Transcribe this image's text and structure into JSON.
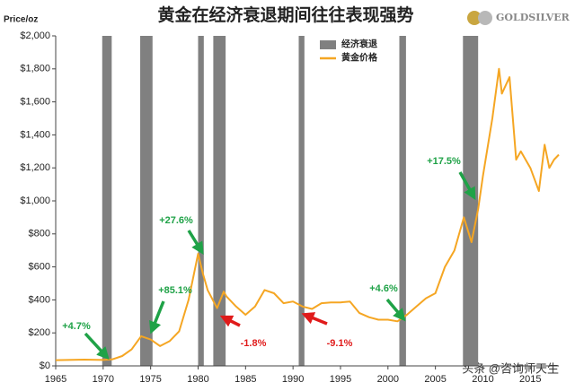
{
  "chart_data": {
    "type": "line",
    "title": "黄金在经济衰退期间往往表现强势",
    "y_label": "Price/oz",
    "logo": "GOLDSILVER",
    "watermark": "头条 @咨询师天生",
    "xlim": [
      1965,
      2018
    ],
    "xticks": [
      1965,
      1970,
      1975,
      1980,
      1985,
      1990,
      1995,
      2000,
      2005,
      2010,
      2015
    ],
    "ylim": [
      0,
      2000
    ],
    "yticks": [
      {
        "value": 0,
        "label": "$0"
      },
      {
        "value": 200,
        "label": "$200"
      },
      {
        "value": 400,
        "label": "$400"
      },
      {
        "value": 600,
        "label": "$600"
      },
      {
        "value": 800,
        "label": "$800"
      },
      {
        "value": 1000,
        "label": "$1,000"
      },
      {
        "value": 1200,
        "label": "$1,200"
      },
      {
        "value": 1400,
        "label": "$1,400"
      },
      {
        "value": 1600,
        "label": "$1,600"
      },
      {
        "value": 1800,
        "label": "$1,800"
      },
      {
        "value": 2000,
        "label": "$2,000"
      }
    ],
    "series": [
      {
        "name": "经济衰退",
        "color": "#808080",
        "ranges": [
          [
            1969.9,
            1970.9
          ],
          [
            1973.9,
            1975.2
          ],
          [
            1980.0,
            1980.6
          ],
          [
            1981.6,
            1982.9
          ],
          [
            1990.6,
            1991.2
          ],
          [
            2001.2,
            2001.9
          ],
          [
            2007.9,
            2009.5
          ]
        ]
      },
      {
        "name": "黄金价格",
        "color": "#f5a623",
        "x": [
          1965,
          1968,
          1970,
          1971,
          1972,
          1973,
          1974,
          1975,
          1976,
          1977,
          1978,
          1979,
          1980,
          1980.5,
          1981,
          1982,
          1982.7,
          1983,
          1984,
          1985,
          1986,
          1987,
          1988,
          1989,
          1990,
          1991,
          1992,
          1993,
          1994,
          1995,
          1996,
          1997,
          1998,
          1999,
          2000,
          2001,
          2002,
          2003,
          2004,
          2005,
          2006,
          2007,
          2008,
          2008.8,
          2009.5,
          2010,
          2011,
          2011.7,
          2012,
          2012.8,
          2013.3,
          2013.5,
          2014,
          2015,
          2015.9,
          2016.5,
          2017,
          2017.5,
          2018
        ],
        "values": [
          35,
          38,
          36,
          40,
          60,
          100,
          180,
          160,
          120,
          150,
          210,
          400,
          680,
          560,
          460,
          350,
          450,
          420,
          360,
          310,
          360,
          460,
          440,
          380,
          390,
          360,
          345,
          380,
          385,
          385,
          390,
          320,
          295,
          280,
          280,
          270,
          310,
          360,
          410,
          440,
          600,
          700,
          900,
          750,
          950,
          1150,
          1500,
          1800,
          1650,
          1750,
          1400,
          1250,
          1300,
          1200,
          1060,
          1340,
          1200,
          1250,
          1280
        ]
      }
    ],
    "annotations": [
      {
        "text": "+4.7%",
        "color": "#1fa247"
      },
      {
        "text": "+85.1%",
        "color": "#1fa247"
      },
      {
        "text": "+27.6%",
        "color": "#1fa247"
      },
      {
        "text": "-1.8%",
        "color": "#e01b1b"
      },
      {
        "text": "-9.1%",
        "color": "#e01b1b"
      },
      {
        "text": "+4.6%",
        "color": "#1fa247"
      },
      {
        "text": "+17.5%",
        "color": "#1fa247"
      }
    ]
  }
}
